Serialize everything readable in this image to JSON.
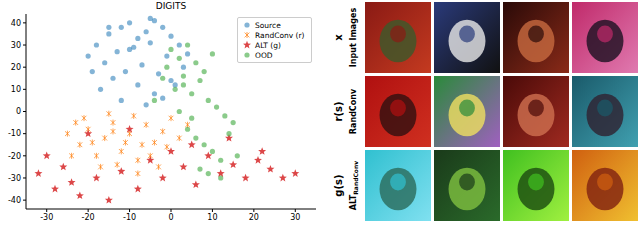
{
  "chart_data": {
    "type": "scatter",
    "title": "DIGITS",
    "xlim": [
      -35,
      35
    ],
    "xticks": [
      -30,
      -20,
      -10,
      0,
      10,
      20,
      30
    ],
    "ylim": [
      -44,
      44
    ],
    "yticks": [
      -40,
      -30,
      -20,
      -10,
      0,
      10,
      20,
      30,
      40
    ],
    "grid": false,
    "legend": "upper right",
    "series": [
      {
        "name": "Source",
        "color": "#1f77b4",
        "marker": "circle",
        "x": [
          -18,
          -15,
          -12,
          -10,
          -8,
          -6,
          -4,
          -2,
          0,
          2,
          4,
          -16,
          -13,
          -9,
          -5,
          -1,
          3,
          -14,
          -11,
          -7,
          -3,
          1,
          -20,
          -17,
          -8,
          -4,
          0,
          -12,
          -6,
          -2,
          -10,
          -15,
          -19,
          -5
        ],
        "y": [
          30,
          35,
          38,
          40,
          33,
          36,
          41,
          38,
          34,
          30,
          26,
          22,
          27,
          29,
          31,
          25,
          20,
          15,
          18,
          21,
          17,
          12,
          25,
          10,
          12,
          8,
          14,
          5,
          3,
          6,
          28,
          38,
          18,
          42
        ]
      },
      {
        "name": "RandConv (r)",
        "color": "#ff7f0e",
        "marker": "cross",
        "x": [
          -25,
          -22,
          -20,
          -18,
          -16,
          -14,
          -12,
          -10,
          -8,
          -6,
          -4,
          -2,
          0,
          2,
          -24,
          -21,
          -17,
          -13,
          -9,
          -5,
          -1,
          -19,
          -15,
          -11,
          -7,
          -3,
          -23,
          -14,
          -8,
          4
        ],
        "y": [
          -10,
          -15,
          -8,
          -20,
          -12,
          -5,
          -18,
          -10,
          -22,
          -6,
          -14,
          -9,
          -3,
          -12,
          -20,
          -3,
          -25,
          -24,
          -2,
          -20,
          -16,
          -14,
          -1,
          -14,
          -15,
          -25,
          -5,
          -9,
          -28,
          -6
        ]
      },
      {
        "name": "ALT (g)",
        "color": "#d62728",
        "marker": "star",
        "x": [
          -32,
          -30,
          -28,
          -26,
          -24,
          -22,
          -18,
          -15,
          -12,
          -8,
          -5,
          -2,
          0,
          3,
          6,
          9,
          12,
          15,
          18,
          21,
          24,
          27,
          30,
          -20,
          -10,
          5,
          14,
          22
        ],
        "y": [
          -28,
          -20,
          -35,
          -25,
          -32,
          -38,
          -30,
          -40,
          -27,
          -35,
          -22,
          -30,
          -18,
          -25,
          -33,
          -20,
          -28,
          -24,
          -30,
          -22,
          -26,
          -30,
          -28,
          -10,
          -8,
          -15,
          -12,
          -18
        ]
      },
      {
        "name": "OOD",
        "color": "#2ca02c",
        "marker": "circle",
        "x": [
          0,
          2,
          4,
          6,
          8,
          10,
          -2,
          1,
          3,
          5,
          7,
          9,
          11,
          13,
          15,
          4,
          6,
          8,
          10,
          12,
          14,
          16,
          2,
          5,
          7,
          9,
          -4,
          -1,
          3,
          12
        ],
        "y": [
          28,
          24,
          30,
          22,
          18,
          26,
          15,
          10,
          12,
          8,
          14,
          5,
          2,
          -2,
          -5,
          -8,
          -12,
          -15,
          -18,
          -22,
          -10,
          -20,
          0,
          -3,
          -26,
          -28,
          5,
          20,
          16,
          -30
        ]
      }
    ]
  },
  "image_grid": {
    "rows": [
      {
        "symbol": "x",
        "label": "Input Images"
      },
      {
        "symbol": "r(s)",
        "label": "RandConv"
      },
      {
        "symbol": "g(s)",
        "label": "ALT",
        "subscript": "RandConv"
      }
    ]
  }
}
